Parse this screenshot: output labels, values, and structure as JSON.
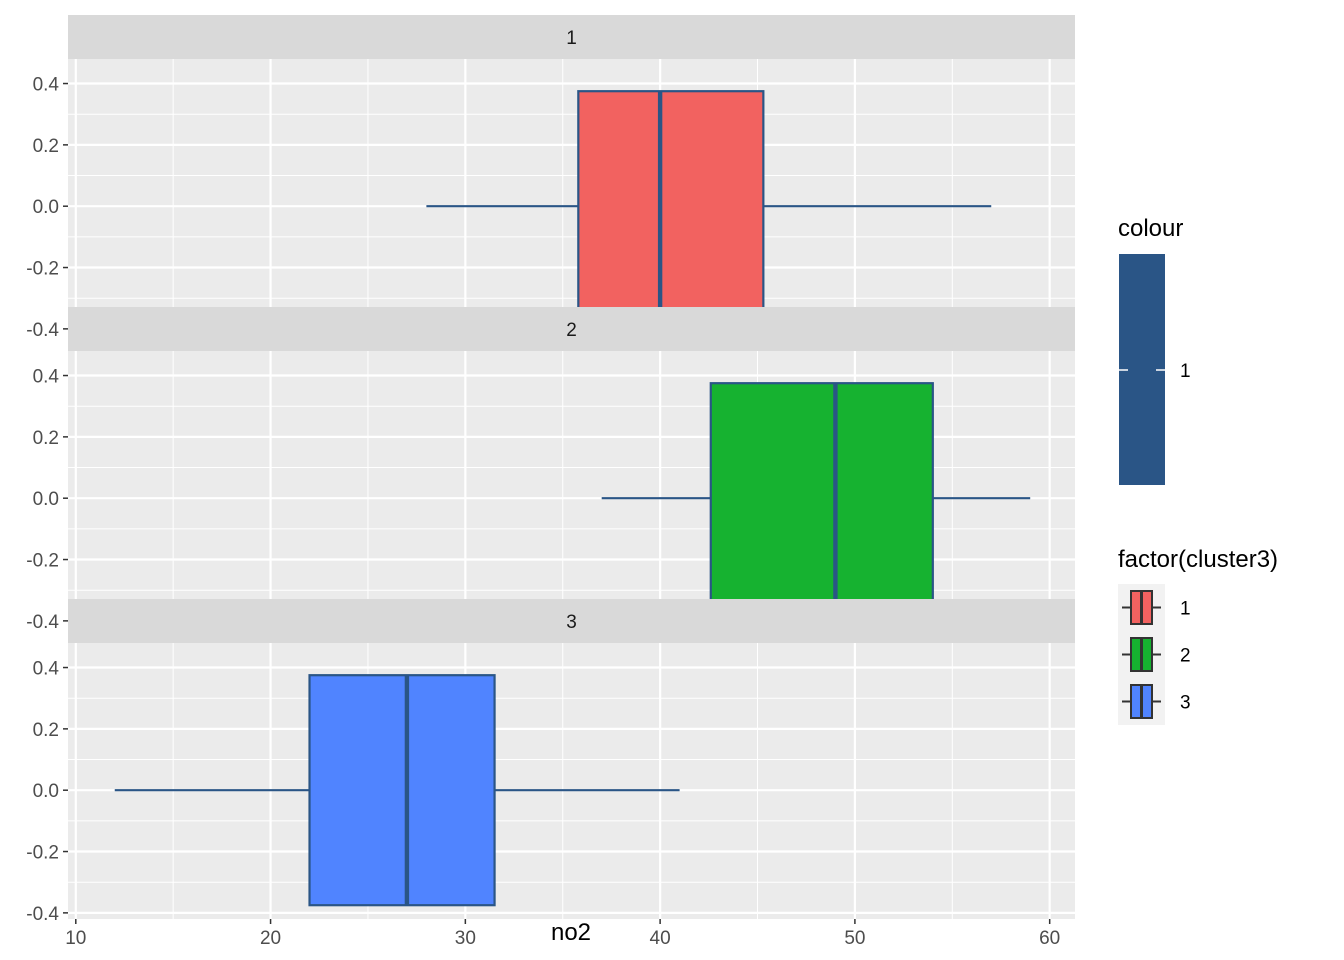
{
  "chart_data": {
    "type": "boxplot",
    "xlabel": "no2",
    "ylabel": "",
    "xlim": [
      9.6,
      61.3
    ],
    "ylim": [
      -0.42,
      0.48
    ],
    "x_ticks": [
      10,
      20,
      30,
      40,
      50,
      60
    ],
    "x_tick_labels": [
      "10",
      "20",
      "30",
      "40",
      "50",
      "60"
    ],
    "y_ticks": [
      0.4,
      0.2,
      0.0,
      -0.2,
      -0.4
    ],
    "y_tick_labels": [
      "0.4",
      "0.2",
      "0.0",
      "-0.2",
      "-0.4"
    ],
    "grid": true,
    "facets": [
      {
        "label": "1",
        "fill": "#F26260",
        "box": {
          "min": 28.0,
          "q1": 35.8,
          "median": 40.0,
          "q3": 45.3,
          "max": 57.0,
          "y_low": -0.375,
          "y_high": 0.375
        }
      },
      {
        "label": "2",
        "fill": "#16B230",
        "box": {
          "min": 37.0,
          "q1": 42.6,
          "median": 49.0,
          "q3": 54.0,
          "max": 59.0,
          "y_low": -0.375,
          "y_high": 0.375
        }
      },
      {
        "label": "3",
        "fill": "#5084FF",
        "box": {
          "min": 12.0,
          "q1": 22.0,
          "median": 27.0,
          "q3": 31.5,
          "max": 41.0,
          "y_low": -0.375,
          "y_high": 0.375
        }
      }
    ],
    "outline_color": "#2A5586",
    "legend_placement": "right",
    "legends": [
      {
        "title": "colour",
        "type": "colorbar",
        "color": "#2A5586",
        "labels": [
          "1"
        ]
      },
      {
        "title": "factor(cluster3)",
        "type": "fill",
        "entries": [
          {
            "label": "1",
            "color": "#F26260"
          },
          {
            "label": "2",
            "color": "#16B230"
          },
          {
            "label": "3",
            "color": "#5084FF"
          }
        ]
      }
    ]
  }
}
